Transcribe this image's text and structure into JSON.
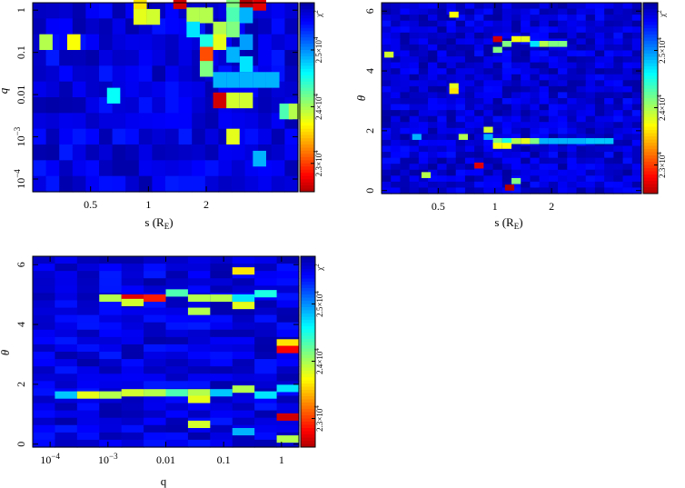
{
  "chart_data": [
    {
      "id": "s_vs_q",
      "type": "heatmap",
      "xlabel": "s (R",
      "xlabel_sub": "E",
      "xlabel_end": ")",
      "ylabel": "q",
      "x_scale": "log",
      "y_scale": "log",
      "xlim": [
        0.25,
        6.0
      ],
      "ylim": [
        5e-05,
        1.5
      ],
      "xticks": [
        {
          "value": 0.5,
          "label": "0.5"
        },
        {
          "value": 1,
          "label": "1"
        },
        {
          "value": 2,
          "label": "2"
        }
      ],
      "yticks": [
        {
          "value": 1,
          "label": "1",
          "base": "",
          "exp": ""
        },
        {
          "value": 0.1,
          "label": "0.1",
          "base": "",
          "exp": ""
        },
        {
          "value": 0.01,
          "label": "0.01",
          "base": "",
          "exp": ""
        },
        {
          "value": 0.001,
          "label": "",
          "base": "10",
          "exp": "−3"
        },
        {
          "value": 0.0001,
          "label": "",
          "base": "10",
          "exp": "−4"
        }
      ],
      "colorbar": {
        "symbol": "χ",
        "exp": "2",
        "ticks": [
          {
            "frac": 0.15,
            "base": "2.3×10",
            "exp": "4"
          },
          {
            "frac": 0.45,
            "base": "2.4×10",
            "exp": "4"
          },
          {
            "frac": 0.75,
            "base": "2.5×10",
            "exp": "4"
          }
        ]
      },
      "grid": {
        "cols": 20,
        "rows": 12,
        "seed": 11,
        "background_level": 0.04
      },
      "hot_cells": [
        {
          "x": 7.6,
          "y": 11.5,
          "v": 0.65
        },
        {
          "x": 7.6,
          "y": 10.6,
          "v": 0.6
        },
        {
          "x": 8.6,
          "y": 10.6,
          "v": 0.58
        },
        {
          "x": 10.6,
          "y": 11.6,
          "v": 0.92
        },
        {
          "x": 11.6,
          "y": 10.7,
          "v": 0.55
        },
        {
          "x": 12.6,
          "y": 10.7,
          "v": 0.55
        },
        {
          "x": 11.6,
          "y": 9.8,
          "v": 0.35
        },
        {
          "x": 14.6,
          "y": 11.5,
          "v": 0.5
        },
        {
          "x": 15.6,
          "y": 11.5,
          "v": 0.95
        },
        {
          "x": 16.6,
          "y": 11.5,
          "v": 0.9
        },
        {
          "x": 14.6,
          "y": 10.7,
          "v": 0.45
        },
        {
          "x": 15.6,
          "y": 10.7,
          "v": 0.3
        },
        {
          "x": 13.6,
          "y": 9.8,
          "v": 0.55
        },
        {
          "x": 14.6,
          "y": 9.8,
          "v": 0.5
        },
        {
          "x": 15.6,
          "y": 9.0,
          "v": 0.28
        },
        {
          "x": 0.5,
          "y": 9.0,
          "v": 0.55
        },
        {
          "x": 2.6,
          "y": 9.0,
          "v": 0.62
        },
        {
          "x": 12.6,
          "y": 9.0,
          "v": 0.4
        },
        {
          "x": 13.6,
          "y": 9.0,
          "v": 0.6
        },
        {
          "x": 12.6,
          "y": 8.2,
          "v": 0.8
        },
        {
          "x": 14.6,
          "y": 8.2,
          "v": 0.3
        },
        {
          "x": 12.6,
          "y": 7.3,
          "v": 0.5
        },
        {
          "x": 13.6,
          "y": 6.6,
          "v": 0.3
        },
        {
          "x": 14.6,
          "y": 6.6,
          "v": 0.3
        },
        {
          "x": 15.6,
          "y": 6.6,
          "v": 0.3
        },
        {
          "x": 16.6,
          "y": 6.6,
          "v": 0.3
        },
        {
          "x": 17.6,
          "y": 6.6,
          "v": 0.3
        },
        {
          "x": 15.6,
          "y": 7.6,
          "v": 0.35
        },
        {
          "x": 5.6,
          "y": 5.6,
          "v": 0.38
        },
        {
          "x": 13.6,
          "y": 5.3,
          "v": 0.92
        },
        {
          "x": 14.6,
          "y": 5.3,
          "v": 0.58
        },
        {
          "x": 15.6,
          "y": 5.3,
          "v": 0.58
        },
        {
          "x": 18.6,
          "y": 4.6,
          "v": 0.45
        },
        {
          "x": 19.3,
          "y": 4.6,
          "v": 0.55
        },
        {
          "x": 14.6,
          "y": 3.0,
          "v": 0.6
        },
        {
          "x": 16.6,
          "y": 1.6,
          "v": 0.3
        }
      ]
    },
    {
      "id": "s_vs_theta",
      "type": "heatmap",
      "xlabel": "s (R",
      "xlabel_sub": "E",
      "xlabel_end": ")",
      "ylabel": "θ",
      "x_scale": "log",
      "y_scale": "linear",
      "xlim": [
        0.25,
        6.0
      ],
      "ylim": [
        -0.1,
        6.28
      ],
      "xticks": [
        {
          "value": 0.5,
          "label": "0.5"
        },
        {
          "value": 1,
          "label": "1"
        },
        {
          "value": 2,
          "label": "2"
        }
      ],
      "yticks": [
        {
          "value": 0,
          "label": "0"
        },
        {
          "value": 2,
          "label": "2"
        },
        {
          "value": 4,
          "label": "4"
        },
        {
          "value": 6,
          "label": "6"
        }
      ],
      "colorbar": {
        "symbol": "χ",
        "exp": "2",
        "ticks": [
          {
            "frac": 0.15,
            "base": "2.3×10",
            "exp": "4"
          },
          {
            "frac": 0.45,
            "base": "2.4×10",
            "exp": "4"
          },
          {
            "frac": 0.75,
            "base": "2.5×10",
            "exp": "4"
          }
        ]
      },
      "grid": {
        "cols": 28,
        "rows": 32,
        "seed": 23,
        "background_level": 0.03
      },
      "hot_cells": [
        {
          "x": 7.3,
          "y": 29.5,
          "v": 0.62
        },
        {
          "x": 12.0,
          "y": 25.4,
          "v": 0.92
        },
        {
          "x": 13.0,
          "y": 24.6,
          "v": 0.5
        },
        {
          "x": 14.0,
          "y": 25.4,
          "v": 0.62
        },
        {
          "x": 15.0,
          "y": 25.4,
          "v": 0.6
        },
        {
          "x": 16.0,
          "y": 24.6,
          "v": 0.35
        },
        {
          "x": 17.0,
          "y": 24.6,
          "v": 0.55
        },
        {
          "x": 18.0,
          "y": 24.6,
          "v": 0.5
        },
        {
          "x": 19.0,
          "y": 24.6,
          "v": 0.5
        },
        {
          "x": 12.0,
          "y": 23.6,
          "v": 0.5
        },
        {
          "x": 0.3,
          "y": 22.8,
          "v": 0.58
        },
        {
          "x": 7.3,
          "y": 17.5,
          "v": 0.6
        },
        {
          "x": 7.3,
          "y": 16.7,
          "v": 0.65
        },
        {
          "x": 11.0,
          "y": 10.2,
          "v": 0.58
        },
        {
          "x": 11.0,
          "y": 9.0,
          "v": 0.3
        },
        {
          "x": 3.3,
          "y": 9.0,
          "v": 0.3
        },
        {
          "x": 8.3,
          "y": 9.0,
          "v": 0.55
        },
        {
          "x": 12.0,
          "y": 8.3,
          "v": 0.5
        },
        {
          "x": 13.0,
          "y": 8.3,
          "v": 0.4
        },
        {
          "x": 14.0,
          "y": 8.3,
          "v": 0.55
        },
        {
          "x": 15.0,
          "y": 8.3,
          "v": 0.6
        },
        {
          "x": 16.0,
          "y": 8.3,
          "v": 0.5
        },
        {
          "x": 17.0,
          "y": 8.3,
          "v": 0.3
        },
        {
          "x": 18.0,
          "y": 8.3,
          "v": 0.3
        },
        {
          "x": 19.0,
          "y": 8.3,
          "v": 0.3
        },
        {
          "x": 20.0,
          "y": 8.3,
          "v": 0.3
        },
        {
          "x": 21.0,
          "y": 8.3,
          "v": 0.3
        },
        {
          "x": 22.0,
          "y": 8.3,
          "v": 0.32
        },
        {
          "x": 23.0,
          "y": 8.3,
          "v": 0.32
        },
        {
          "x": 24.0,
          "y": 8.3,
          "v": 0.32
        },
        {
          "x": 12.0,
          "y": 7.5,
          "v": 0.62
        },
        {
          "x": 13.0,
          "y": 7.5,
          "v": 0.62
        },
        {
          "x": 10.0,
          "y": 4.2,
          "v": 0.9
        },
        {
          "x": 4.3,
          "y": 2.6,
          "v": 0.55
        },
        {
          "x": 14.0,
          "y": 1.6,
          "v": 0.5
        },
        {
          "x": 13.3,
          "y": 0.5,
          "v": 0.95
        }
      ]
    },
    {
      "id": "q_vs_theta",
      "type": "heatmap",
      "xlabel": "q",
      "xlabel_sub": "",
      "xlabel_end": "",
      "ylabel": "θ",
      "x_scale": "log",
      "y_scale": "linear",
      "xlim": [
        5e-05,
        2.0
      ],
      "ylim": [
        -0.1,
        6.28
      ],
      "xticks": [
        {
          "value": 0.0001,
          "label": "",
          "base": "10",
          "exp": "−4"
        },
        {
          "value": 0.001,
          "label": "",
          "base": "10",
          "exp": "−3"
        },
        {
          "value": 0.01,
          "label": "0.01",
          "base": "",
          "exp": ""
        },
        {
          "value": 0.1,
          "label": "0.1",
          "base": "",
          "exp": ""
        },
        {
          "value": 1,
          "label": "1",
          "base": "",
          "exp": ""
        }
      ],
      "yticks": [
        {
          "value": 0,
          "label": "0"
        },
        {
          "value": 2,
          "label": "2"
        },
        {
          "value": 4,
          "label": "4"
        },
        {
          "value": 6,
          "label": "6"
        }
      ],
      "colorbar": {
        "symbol": "χ",
        "exp": "2",
        "ticks": [
          {
            "frac": 0.15,
            "base": "2.3×10",
            "exp": "4"
          },
          {
            "frac": 0.45,
            "base": "2.4×10",
            "exp": "4"
          },
          {
            "frac": 0.75,
            "base": "2.5×10",
            "exp": "4"
          }
        ]
      },
      "grid": {
        "cols": 12,
        "rows": 26,
        "seed": 37,
        "background_level": 0.04
      },
      "hot_cells": [
        {
          "x": 3.0,
          "y": 19.8,
          "v": 0.55
        },
        {
          "x": 4.0,
          "y": 19.8,
          "v": 0.9
        },
        {
          "x": 5.0,
          "y": 19.8,
          "v": 0.85
        },
        {
          "x": 4.0,
          "y": 19.2,
          "v": 0.58
        },
        {
          "x": 6.0,
          "y": 20.5,
          "v": 0.45
        },
        {
          "x": 7.0,
          "y": 19.8,
          "v": 0.55
        },
        {
          "x": 8.0,
          "y": 19.8,
          "v": 0.55
        },
        {
          "x": 9.0,
          "y": 19.8,
          "v": 0.35
        },
        {
          "x": 9.0,
          "y": 18.8,
          "v": 0.6
        },
        {
          "x": 10.0,
          "y": 20.4,
          "v": 0.4
        },
        {
          "x": 7.0,
          "y": 18.0,
          "v": 0.55
        },
        {
          "x": 9.0,
          "y": 23.5,
          "v": 0.65
        },
        {
          "x": 11.0,
          "y": 13.7,
          "v": 0.65
        },
        {
          "x": 11.0,
          "y": 12.8,
          "v": 0.88
        },
        {
          "x": 1.0,
          "y": 6.6,
          "v": 0.32
        },
        {
          "x": 2.0,
          "y": 6.6,
          "v": 0.6
        },
        {
          "x": 3.0,
          "y": 6.6,
          "v": 0.55
        },
        {
          "x": 4.0,
          "y": 6.9,
          "v": 0.58
        },
        {
          "x": 5.0,
          "y": 6.9,
          "v": 0.55
        },
        {
          "x": 6.0,
          "y": 6.9,
          "v": 0.45
        },
        {
          "x": 7.0,
          "y": 6.9,
          "v": 0.55
        },
        {
          "x": 8.0,
          "y": 6.9,
          "v": 0.32
        },
        {
          "x": 9.0,
          "y": 7.4,
          "v": 0.55
        },
        {
          "x": 10.0,
          "y": 6.6,
          "v": 0.35
        },
        {
          "x": 7.0,
          "y": 6.0,
          "v": 0.6
        },
        {
          "x": 7.0,
          "y": 2.6,
          "v": 0.58
        },
        {
          "x": 11.0,
          "y": 3.6,
          "v": 0.92
        },
        {
          "x": 9.0,
          "y": 1.6,
          "v": 0.3
        },
        {
          "x": 11.0,
          "y": 0.6,
          "v": 0.55
        },
        {
          "x": 11.0,
          "y": 7.5,
          "v": 0.35
        }
      ]
    }
  ]
}
